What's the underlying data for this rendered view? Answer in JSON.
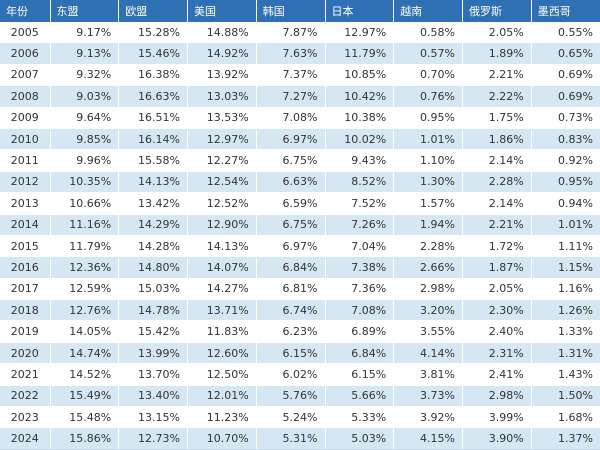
{
  "colors": {
    "header_bg": "#2f6fb3",
    "header_text": "#ffffff",
    "stripe": "#d6e7f4",
    "text": "#333333"
  },
  "table": {
    "headers": [
      "年份",
      "东盟",
      "欧盟",
      "美国",
      "韩国",
      "日本",
      "越南",
      "俄罗斯",
      "墨西哥"
    ],
    "rows": [
      [
        "2005",
        "9.17%",
        "15.28%",
        "14.88%",
        "7.87%",
        "12.97%",
        "0.58%",
        "2.05%",
        "0.55%"
      ],
      [
        "2006",
        "9.13%",
        "15.46%",
        "14.92%",
        "7.63%",
        "11.79%",
        "0.57%",
        "1.89%",
        "0.65%"
      ],
      [
        "2007",
        "9.32%",
        "16.38%",
        "13.92%",
        "7.37%",
        "10.85%",
        "0.70%",
        "2.21%",
        "0.69%"
      ],
      [
        "2008",
        "9.03%",
        "16.63%",
        "13.03%",
        "7.27%",
        "10.42%",
        "0.76%",
        "2.22%",
        "0.69%"
      ],
      [
        "2009",
        "9.64%",
        "16.51%",
        "13.53%",
        "7.08%",
        "10.38%",
        "0.95%",
        "1.75%",
        "0.73%"
      ],
      [
        "2010",
        "9.85%",
        "16.14%",
        "12.97%",
        "6.97%",
        "10.02%",
        "1.01%",
        "1.86%",
        "0.83%"
      ],
      [
        "2011",
        "9.96%",
        "15.58%",
        "12.27%",
        "6.75%",
        "9.43%",
        "1.10%",
        "2.14%",
        "0.92%"
      ],
      [
        "2012",
        "10.35%",
        "14.13%",
        "12.54%",
        "6.63%",
        "8.52%",
        "1.30%",
        "2.28%",
        "0.95%"
      ],
      [
        "2013",
        "10.66%",
        "13.42%",
        "12.52%",
        "6.59%",
        "7.52%",
        "1.57%",
        "2.14%",
        "0.94%"
      ],
      [
        "2014",
        "11.16%",
        "14.29%",
        "12.90%",
        "6.75%",
        "7.26%",
        "1.94%",
        "2.21%",
        "1.01%"
      ],
      [
        "2015",
        "11.79%",
        "14.28%",
        "14.13%",
        "6.97%",
        "7.04%",
        "2.28%",
        "1.72%",
        "1.11%"
      ],
      [
        "2016",
        "12.36%",
        "14.80%",
        "14.07%",
        "6.84%",
        "7.38%",
        "2.66%",
        "1.87%",
        "1.15%"
      ],
      [
        "2017",
        "12.59%",
        "15.03%",
        "14.27%",
        "6.81%",
        "7.36%",
        "2.98%",
        "2.05%",
        "1.16%"
      ],
      [
        "2018",
        "12.76%",
        "14.78%",
        "13.71%",
        "6.74%",
        "7.08%",
        "3.20%",
        "2.30%",
        "1.26%"
      ],
      [
        "2019",
        "14.05%",
        "15.42%",
        "11.83%",
        "6.23%",
        "6.89%",
        "3.55%",
        "2.40%",
        "1.33%"
      ],
      [
        "2020",
        "14.74%",
        "13.99%",
        "12.60%",
        "6.15%",
        "6.84%",
        "4.14%",
        "2.31%",
        "1.31%"
      ],
      [
        "2021",
        "14.52%",
        "13.70%",
        "12.50%",
        "6.02%",
        "6.15%",
        "3.81%",
        "2.41%",
        "1.43%"
      ],
      [
        "2022",
        "15.49%",
        "13.40%",
        "12.01%",
        "5.76%",
        "5.66%",
        "3.73%",
        "2.98%",
        "1.50%"
      ],
      [
        "2023",
        "15.48%",
        "13.15%",
        "11.23%",
        "5.24%",
        "5.33%",
        "3.92%",
        "3.99%",
        "1.68%"
      ],
      [
        "2024",
        "15.86%",
        "12.73%",
        "10.70%",
        "5.31%",
        "5.03%",
        "4.15%",
        "3.90%",
        "1.37%"
      ]
    ]
  }
}
